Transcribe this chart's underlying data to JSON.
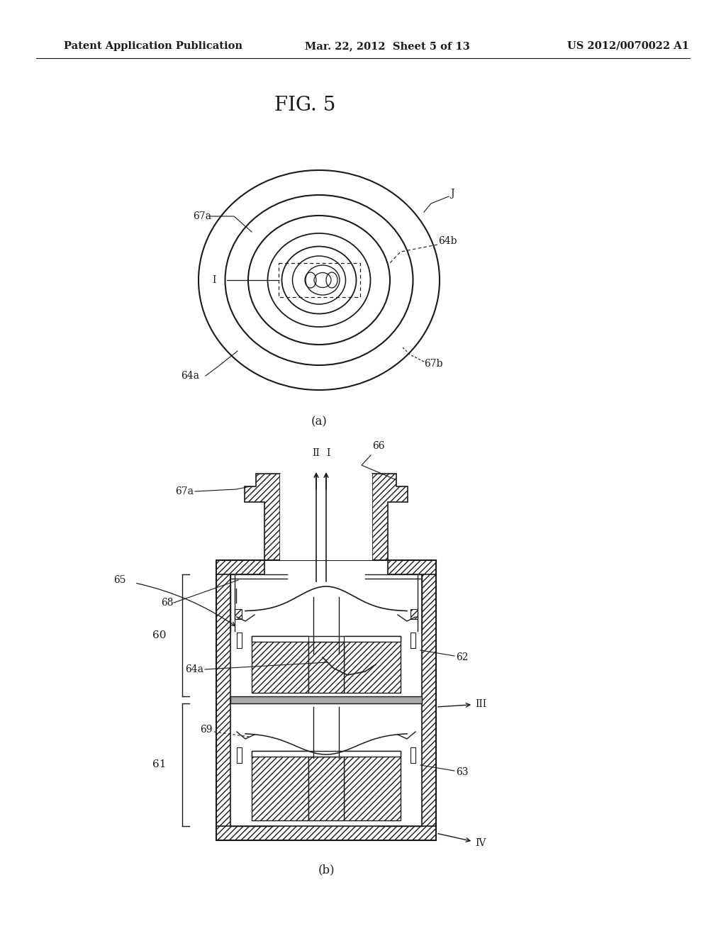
{
  "title": "FIG. 5",
  "header_left": "Patent Application Publication",
  "header_center": "Mar. 22, 2012  Sheet 5 of 13",
  "header_right": "US 2012/0070022 A1",
  "bg_color": "#ffffff",
  "lc": "#1a1a1a",
  "fig_a_label": "(a)",
  "fig_b_label": "(b)"
}
